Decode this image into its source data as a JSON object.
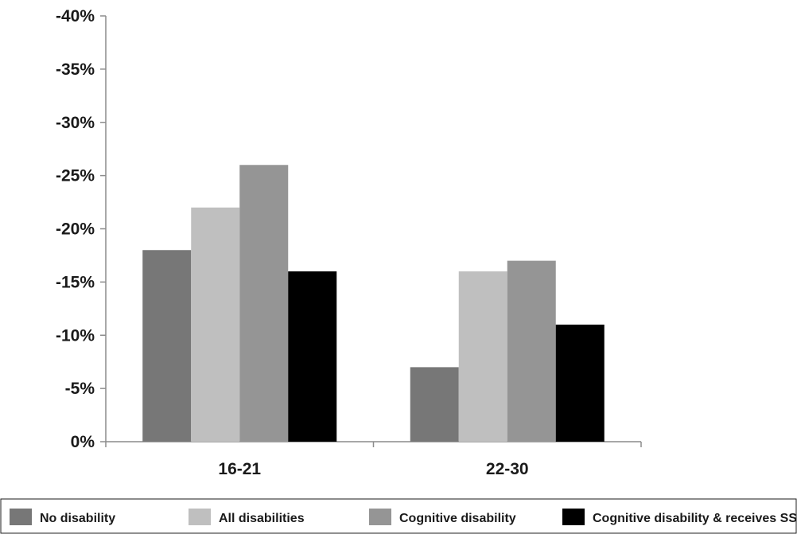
{
  "chart_data": {
    "type": "bar",
    "categories": [
      "16-21",
      "22-30"
    ],
    "series": [
      {
        "name": "No disability",
        "color": "#777777",
        "values": [
          -18,
          -7
        ]
      },
      {
        "name": "All disabilities",
        "color": "#bfbfbf",
        "values": [
          -22,
          -16
        ]
      },
      {
        "name": "Cognitive disability",
        "color": "#959595",
        "values": [
          -26,
          -17
        ]
      },
      {
        "name": "Cognitive disability & receives SSI",
        "color": "#000000",
        "values": [
          -16,
          -11
        ]
      }
    ],
    "ylim": [
      0,
      -40
    ],
    "yticks": [
      0,
      -5,
      -10,
      -15,
      -20,
      -25,
      -30,
      -35,
      -40
    ],
    "ytick_labels": [
      "0%",
      "-5%",
      "-10%",
      "-15%",
      "-20%",
      "-25%",
      "-30%",
      "-35%",
      "-40%"
    ],
    "title": "",
    "xlabel": "",
    "ylabel": "",
    "grid": false,
    "legend_position": "bottom"
  }
}
